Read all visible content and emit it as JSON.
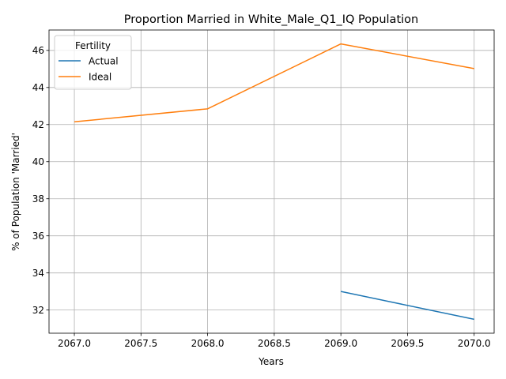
{
  "chart_data": {
    "type": "line",
    "title": "Proportion Married in White_Male_Q1_IQ Population",
    "xlabel": "Years",
    "ylabel": "% of Population 'Married'",
    "xlim": [
      2066.81,
      2070.15
    ],
    "ylim": [
      30.75,
      47.1
    ],
    "xticks": [
      2067.0,
      2067.5,
      2068.0,
      2068.5,
      2069.0,
      2069.5,
      2070.0
    ],
    "xtick_labels": [
      "2067.0",
      "2067.5",
      "2068.0",
      "2068.5",
      "2069.0",
      "2069.5",
      "2070.0"
    ],
    "yticks": [
      32,
      34,
      36,
      38,
      40,
      42,
      44,
      46
    ],
    "ytick_labels": [
      "32",
      "34",
      "36",
      "38",
      "40",
      "42",
      "44",
      "46"
    ],
    "grid": true,
    "legend": {
      "title": "Fertility",
      "placement": "top-left"
    },
    "series": [
      {
        "name": "Actual",
        "color": "#1f77b4",
        "x": [
          2069,
          2070
        ],
        "y": [
          33.0,
          31.5
        ]
      },
      {
        "name": "Ideal",
        "color": "#ff7f0e",
        "x": [
          2067,
          2068,
          2069,
          2070
        ],
        "y": [
          42.15,
          42.85,
          46.35,
          45.02
        ]
      }
    ]
  }
}
